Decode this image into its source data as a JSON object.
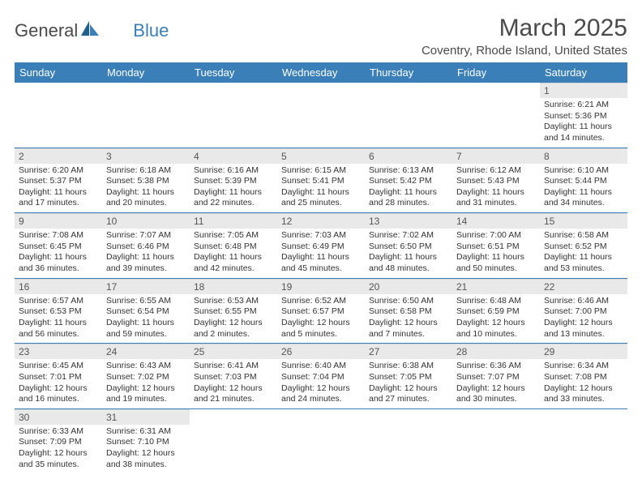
{
  "brand": {
    "name1": "General",
    "name2": "Blue"
  },
  "title": "March 2025",
  "location": "Coventry, Rhode Island, United States",
  "headers": [
    "Sunday",
    "Monday",
    "Tuesday",
    "Wednesday",
    "Thursday",
    "Friday",
    "Saturday"
  ],
  "header_bg": "#3a7fb8",
  "header_fg": "#ffffff",
  "daynum_bg": "#e9e9e9",
  "weeks": [
    [
      null,
      null,
      null,
      null,
      null,
      null,
      {
        "n": "1",
        "sr": "6:21 AM",
        "ss": "5:36 PM",
        "dl": "11 hours and 14 minutes."
      }
    ],
    [
      {
        "n": "2",
        "sr": "6:20 AM",
        "ss": "5:37 PM",
        "dl": "11 hours and 17 minutes."
      },
      {
        "n": "3",
        "sr": "6:18 AM",
        "ss": "5:38 PM",
        "dl": "11 hours and 20 minutes."
      },
      {
        "n": "4",
        "sr": "6:16 AM",
        "ss": "5:39 PM",
        "dl": "11 hours and 22 minutes."
      },
      {
        "n": "5",
        "sr": "6:15 AM",
        "ss": "5:41 PM",
        "dl": "11 hours and 25 minutes."
      },
      {
        "n": "6",
        "sr": "6:13 AM",
        "ss": "5:42 PM",
        "dl": "11 hours and 28 minutes."
      },
      {
        "n": "7",
        "sr": "6:12 AM",
        "ss": "5:43 PM",
        "dl": "11 hours and 31 minutes."
      },
      {
        "n": "8",
        "sr": "6:10 AM",
        "ss": "5:44 PM",
        "dl": "11 hours and 34 minutes."
      }
    ],
    [
      {
        "n": "9",
        "sr": "7:08 AM",
        "ss": "6:45 PM",
        "dl": "11 hours and 36 minutes."
      },
      {
        "n": "10",
        "sr": "7:07 AM",
        "ss": "6:46 PM",
        "dl": "11 hours and 39 minutes."
      },
      {
        "n": "11",
        "sr": "7:05 AM",
        "ss": "6:48 PM",
        "dl": "11 hours and 42 minutes."
      },
      {
        "n": "12",
        "sr": "7:03 AM",
        "ss": "6:49 PM",
        "dl": "11 hours and 45 minutes."
      },
      {
        "n": "13",
        "sr": "7:02 AM",
        "ss": "6:50 PM",
        "dl": "11 hours and 48 minutes."
      },
      {
        "n": "14",
        "sr": "7:00 AM",
        "ss": "6:51 PM",
        "dl": "11 hours and 50 minutes."
      },
      {
        "n": "15",
        "sr": "6:58 AM",
        "ss": "6:52 PM",
        "dl": "11 hours and 53 minutes."
      }
    ],
    [
      {
        "n": "16",
        "sr": "6:57 AM",
        "ss": "6:53 PM",
        "dl": "11 hours and 56 minutes."
      },
      {
        "n": "17",
        "sr": "6:55 AM",
        "ss": "6:54 PM",
        "dl": "11 hours and 59 minutes."
      },
      {
        "n": "18",
        "sr": "6:53 AM",
        "ss": "6:55 PM",
        "dl": "12 hours and 2 minutes."
      },
      {
        "n": "19",
        "sr": "6:52 AM",
        "ss": "6:57 PM",
        "dl": "12 hours and 5 minutes."
      },
      {
        "n": "20",
        "sr": "6:50 AM",
        "ss": "6:58 PM",
        "dl": "12 hours and 7 minutes."
      },
      {
        "n": "21",
        "sr": "6:48 AM",
        "ss": "6:59 PM",
        "dl": "12 hours and 10 minutes."
      },
      {
        "n": "22",
        "sr": "6:46 AM",
        "ss": "7:00 PM",
        "dl": "12 hours and 13 minutes."
      }
    ],
    [
      {
        "n": "23",
        "sr": "6:45 AM",
        "ss": "7:01 PM",
        "dl": "12 hours and 16 minutes."
      },
      {
        "n": "24",
        "sr": "6:43 AM",
        "ss": "7:02 PM",
        "dl": "12 hours and 19 minutes."
      },
      {
        "n": "25",
        "sr": "6:41 AM",
        "ss": "7:03 PM",
        "dl": "12 hours and 21 minutes."
      },
      {
        "n": "26",
        "sr": "6:40 AM",
        "ss": "7:04 PM",
        "dl": "12 hours and 24 minutes."
      },
      {
        "n": "27",
        "sr": "6:38 AM",
        "ss": "7:05 PM",
        "dl": "12 hours and 27 minutes."
      },
      {
        "n": "28",
        "sr": "6:36 AM",
        "ss": "7:07 PM",
        "dl": "12 hours and 30 minutes."
      },
      {
        "n": "29",
        "sr": "6:34 AM",
        "ss": "7:08 PM",
        "dl": "12 hours and 33 minutes."
      }
    ],
    [
      {
        "n": "30",
        "sr": "6:33 AM",
        "ss": "7:09 PM",
        "dl": "12 hours and 35 minutes."
      },
      {
        "n": "31",
        "sr": "6:31 AM",
        "ss": "7:10 PM",
        "dl": "12 hours and 38 minutes."
      },
      null,
      null,
      null,
      null,
      null
    ]
  ]
}
